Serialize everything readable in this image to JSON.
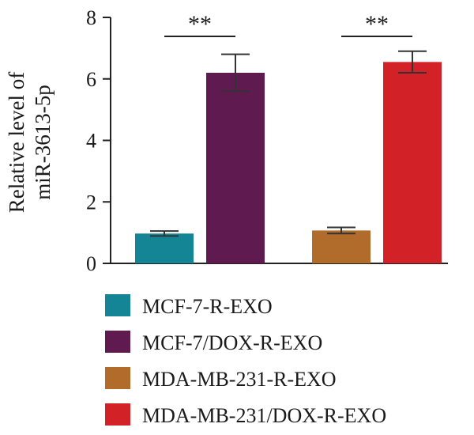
{
  "chart_data": {
    "type": "bar",
    "ylabel": [
      "Relative level of",
      "miR-3613-5p"
    ],
    "ylim": [
      0,
      8
    ],
    "yticks": [
      0,
      2,
      4,
      6,
      8
    ],
    "series": [
      {
        "name": "MCF-7-R-EXO",
        "value": 0.97,
        "error": 0.08,
        "color": "#138595"
      },
      {
        "name": "MCF-7/DOX-R-EXO",
        "value": 6.2,
        "error": 0.6,
        "color": "#5f1a4f"
      },
      {
        "name": "MDA-MB-231-R-EXO",
        "value": 1.07,
        "error": 0.1,
        "color": "#b16c2b"
      },
      {
        "name": "MDA-MB-231/DOX-R-EXO",
        "value": 6.55,
        "error": 0.35,
        "color": "#d32128"
      }
    ],
    "significance": [
      {
        "between": [
          0,
          1
        ],
        "label": "**"
      },
      {
        "between": [
          2,
          3
        ],
        "label": "**"
      }
    ],
    "legend": {
      "placement": "bottom"
    }
  }
}
